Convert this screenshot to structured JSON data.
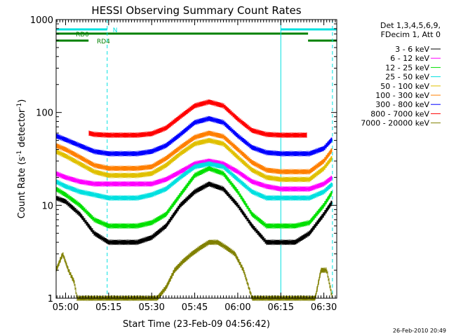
{
  "chart_data": {
    "type": "line",
    "title": "HESSI Observing Summary Count Rates",
    "xlabel": "Start Time (23-Feb-09 04:56:42)",
    "ylabel_main": "Count Rate (s",
    "ylabel_sup1": "-1",
    "ylabel_mid": " detector",
    "ylabel_sup2": "-1",
    "ylabel_end": ")",
    "y_scale": "log",
    "ylim": [
      1,
      1000
    ],
    "xlim": [
      "04:56:42",
      "06:34:30"
    ],
    "x_ticks": [
      "05:00",
      "05:15",
      "05:30",
      "05:45",
      "06:00",
      "06:15",
      "06:30"
    ],
    "y_ticks": [
      "1",
      "10",
      "100",
      "1000"
    ],
    "grid": false,
    "legend_position": "right",
    "legend_header": [
      "Det 1,3,4,5,6,9,",
      "FDecim 1, Att 0"
    ],
    "footer_date": "26-Feb-2010 20:49",
    "bands": [
      {
        "label": "N",
        "color": "#00e0e0",
        "segments": [
          [
            "04:56:42",
            "05:14:30"
          ],
          [
            "06:15:00",
            "06:34:30"
          ]
        ]
      },
      {
        "label": "RD0",
        "color": "#008000",
        "segments": [
          [
            "04:56:42",
            "06:24:30"
          ]
        ]
      },
      {
        "label": "RD4",
        "color": "#008000",
        "segments": [
          [
            "04:56:42",
            "05:08:00"
          ],
          [
            "06:24:30",
            "06:34:30"
          ]
        ]
      }
    ],
    "vertical_lines": [
      {
        "x": "04:56:42",
        "style": "solid",
        "color": "#00e0e0"
      },
      {
        "x": "05:14:30",
        "style": "dashed",
        "color": "#00e0e0"
      },
      {
        "x": "06:15:00",
        "style": "solid",
        "color": "#00e0e0"
      },
      {
        "x": "06:33:00",
        "style": "dashed",
        "color": "#00e0e0"
      }
    ],
    "series": [
      {
        "name": "3 - 6 keV",
        "color": "#000000",
        "x": [
          "04:56:42",
          "05:00",
          "05:05",
          "05:10",
          "05:15",
          "05:20",
          "05:25",
          "05:30",
          "05:35",
          "05:40",
          "05:45",
          "05:50",
          "05:55",
          "06:00",
          "06:05",
          "06:10",
          "06:15",
          "06:20",
          "06:25",
          "06:30",
          "06:33"
        ],
        "values": [
          12,
          11,
          8,
          5,
          4,
          4,
          4,
          4.5,
          6,
          10,
          14,
          17,
          15,
          10,
          6,
          4,
          4,
          4,
          5,
          8,
          11
        ]
      },
      {
        "name": "6 - 12 keV",
        "color": "#ff00ff",
        "x": [
          "04:56:42",
          "05:00",
          "05:05",
          "05:10",
          "05:15",
          "05:20",
          "05:25",
          "05:30",
          "05:35",
          "05:40",
          "05:45",
          "05:50",
          "05:55",
          "06:00",
          "06:05",
          "06:10",
          "06:15",
          "06:20",
          "06:25",
          "06:30",
          "06:33"
        ],
        "values": [
          22,
          20,
          18,
          17,
          17,
          17,
          17,
          17,
          19,
          23,
          28,
          30,
          28,
          23,
          18,
          16,
          15,
          15,
          15,
          17,
          20
        ]
      },
      {
        "name": "12 - 25 keV",
        "color": "#00e000",
        "x": [
          "04:56:42",
          "05:00",
          "05:05",
          "05:10",
          "05:15",
          "05:20",
          "05:25",
          "05:30",
          "05:35",
          "05:40",
          "05:45",
          "05:50",
          "05:55",
          "06:00",
          "06:05",
          "06:10",
          "06:15",
          "06:20",
          "06:25",
          "06:30",
          "06:33"
        ],
        "values": [
          15,
          13,
          10,
          7,
          6,
          6,
          6,
          6.5,
          8,
          13,
          21,
          25,
          22,
          14,
          8,
          6,
          6,
          6,
          6.5,
          10,
          14
        ]
      },
      {
        "name": "25 - 50 keV",
        "color": "#00e0e0",
        "x": [
          "04:56:42",
          "05:00",
          "05:05",
          "05:10",
          "05:15",
          "05:20",
          "05:25",
          "05:30",
          "05:35",
          "05:40",
          "05:45",
          "05:50",
          "05:55",
          "06:00",
          "06:05",
          "06:10",
          "06:15",
          "06:20",
          "06:25",
          "06:30",
          "06:33"
        ],
        "values": [
          18,
          16,
          14,
          13,
          12,
          12,
          12,
          13,
          15,
          20,
          26,
          28,
          26,
          19,
          14,
          12,
          12,
          12,
          12,
          14,
          17
        ]
      },
      {
        "name": "50 - 100 keV",
        "color": "#e0c000",
        "x": [
          "04:56:42",
          "05:00",
          "05:05",
          "05:10",
          "05:15",
          "05:20",
          "05:25",
          "05:30",
          "05:35",
          "05:40",
          "05:45",
          "05:50",
          "05:55",
          "06:00",
          "06:05",
          "06:10",
          "06:15",
          "06:20",
          "06:25",
          "06:30",
          "06:33"
        ],
        "values": [
          38,
          34,
          28,
          23,
          21,
          21,
          21,
          22,
          27,
          36,
          46,
          50,
          46,
          33,
          24,
          20,
          19,
          19,
          19,
          25,
          33
        ]
      },
      {
        "name": "100 - 300 keV",
        "color": "#ff7f00",
        "x": [
          "04:56:42",
          "05:00",
          "05:05",
          "05:10",
          "05:15",
          "05:20",
          "05:25",
          "05:30",
          "05:35",
          "05:40",
          "05:45",
          "05:50",
          "05:55",
          "06:00",
          "06:05",
          "06:10",
          "06:15",
          "06:20",
          "06:25",
          "06:30",
          "06:33"
        ],
        "values": [
          44,
          40,
          33,
          27,
          25,
          25,
          25,
          26,
          32,
          42,
          54,
          60,
          55,
          40,
          29,
          24,
          23,
          23,
          23,
          30,
          40
        ]
      },
      {
        "name": "300 - 800 keV",
        "color": "#0000ff",
        "x": [
          "04:56:42",
          "05:00",
          "05:05",
          "05:10",
          "05:15",
          "05:20",
          "05:25",
          "05:30",
          "05:35",
          "05:40",
          "05:45",
          "05:50",
          "05:55",
          "06:00",
          "06:05",
          "06:10",
          "06:15",
          "06:20",
          "06:25",
          "06:30",
          "06:33"
        ],
        "values": [
          56,
          51,
          44,
          38,
          36,
          36,
          36,
          38,
          44,
          58,
          78,
          86,
          78,
          56,
          42,
          37,
          36,
          36,
          36,
          41,
          52
        ]
      },
      {
        "name": "800 - 7000 keV",
        "color": "#ff0000",
        "x": [
          "05:08",
          "05:10",
          "05:15",
          "05:20",
          "05:25",
          "05:30",
          "05:35",
          "05:40",
          "05:45",
          "05:50",
          "05:55",
          "06:00",
          "06:05",
          "06:10",
          "06:15",
          "06:20",
          "06:24"
        ],
        "values": [
          60,
          58,
          57,
          57,
          57,
          59,
          68,
          90,
          118,
          130,
          118,
          85,
          64,
          58,
          57,
          57,
          57
        ]
      },
      {
        "name": "7000 - 20000 keV",
        "color": "#808000",
        "x": [
          "04:56:42",
          "04:59",
          "05:01",
          "05:03",
          "05:04",
          "05:06",
          "05:07",
          "05:32",
          "05:35",
          "05:38",
          "05:41",
          "05:44",
          "05:47",
          "05:50",
          "05:53",
          "05:56",
          "05:59",
          "06:02",
          "06:05",
          "06:27",
          "06:29",
          "06:31",
          "06:33"
        ],
        "values": [
          2,
          3,
          2,
          1.5,
          1,
          1,
          1,
          1,
          1.3,
          2,
          2.5,
          3,
          3.5,
          4,
          4,
          3.5,
          3,
          2,
          1,
          1,
          2,
          2,
          1
        ]
      }
    ]
  }
}
